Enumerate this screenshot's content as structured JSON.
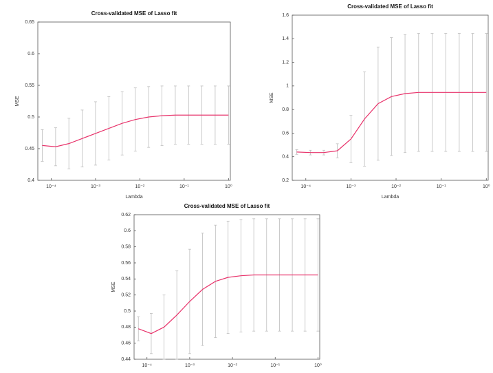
{
  "chart_data": [
    {
      "type": "line",
      "title": "Cross-validated MSE of Lasso fit",
      "xlabel": "Lambda",
      "ylabel": "MSE",
      "log_x": true,
      "x": [
        6.3e-05,
        0.000126,
        0.000251,
        0.0005,
        0.001,
        0.002,
        0.004,
        0.0079,
        0.0158,
        0.0316,
        0.063,
        0.126,
        0.251,
        0.5,
        1
      ],
      "xlim": [
        5e-05,
        1.1
      ],
      "xticks": [
        {
          "value": 0.0001,
          "label": "10⁻⁴"
        },
        {
          "value": 0.001,
          "label": "10⁻³"
        },
        {
          "value": 0.01,
          "label": "10⁻²"
        },
        {
          "value": 0.1,
          "label": "10⁻¹"
        },
        {
          "value": 1,
          "label": "10⁰"
        }
      ],
      "ylim": [
        0.4,
        0.65
      ],
      "yticks": [
        0.4,
        0.45,
        0.5,
        0.55,
        0.6,
        0.65
      ],
      "series": [
        {
          "color": "#e8336b",
          "error_color": "#bdbdbd",
          "values": [
            0.455,
            0.453,
            0.458,
            0.466,
            0.474,
            0.482,
            0.49,
            0.496,
            0.5,
            0.502,
            0.503,
            0.503,
            0.503,
            0.503,
            0.503
          ],
          "errors": [
            0.025,
            0.03,
            0.04,
            0.045,
            0.05,
            0.05,
            0.05,
            0.05,
            0.048,
            0.047,
            0.046,
            0.046,
            0.046,
            0.046,
            0.046
          ]
        }
      ]
    },
    {
      "type": "line",
      "title": "Cross-validated MSE of Lasso fit",
      "xlabel": "Lambda",
      "ylabel": "MSE",
      "log_x": true,
      "x": [
        6.3e-05,
        0.000126,
        0.000251,
        0.0005,
        0.001,
        0.002,
        0.004,
        0.0079,
        0.0158,
        0.0316,
        0.063,
        0.126,
        0.251,
        0.5,
        1
      ],
      "xlim": [
        5e-05,
        1.1
      ],
      "xticks": [
        {
          "value": 0.0001,
          "label": "10⁻⁴"
        },
        {
          "value": 0.001,
          "label": "10⁻³"
        },
        {
          "value": 0.01,
          "label": "10⁻²"
        },
        {
          "value": 0.1,
          "label": "10⁻¹"
        },
        {
          "value": 1,
          "label": "10⁰"
        }
      ],
      "ylim": [
        0.2,
        1.6
      ],
      "yticks": [
        0.2,
        0.4,
        0.6,
        0.8,
        1,
        1.2,
        1.4,
        1.6
      ],
      "series": [
        {
          "color": "#e8336b",
          "error_color": "#bdbdbd",
          "values": [
            0.44,
            0.435,
            0.435,
            0.45,
            0.55,
            0.72,
            0.85,
            0.91,
            0.935,
            0.945,
            0.945,
            0.945,
            0.945,
            0.945,
            0.945
          ],
          "errors": [
            0.02,
            0.02,
            0.02,
            0.06,
            0.2,
            0.4,
            0.48,
            0.5,
            0.5,
            0.5,
            0.5,
            0.5,
            0.5,
            0.5,
            0.5
          ]
        }
      ]
    },
    {
      "type": "line",
      "title": "Cross-validated MSE of Lasso fit",
      "ylabel": "MSE",
      "log_x": true,
      "x": [
        6.3e-05,
        0.000126,
        0.000251,
        0.0005,
        0.001,
        0.002,
        0.004,
        0.0079,
        0.0158,
        0.0316,
        0.063,
        0.126,
        0.251,
        0.5,
        1
      ],
      "xlim": [
        5e-05,
        1.1
      ],
      "xticks": [
        {
          "value": 0.0001,
          "label": "10⁻⁴"
        },
        {
          "value": 0.001,
          "label": "10⁻³"
        },
        {
          "value": 0.01,
          "label": "10⁻²"
        },
        {
          "value": 0.1,
          "label": "10⁻¹"
        },
        {
          "value": 1,
          "label": "10⁰"
        }
      ],
      "ylim": [
        0.44,
        0.62
      ],
      "yticks": [
        0.44,
        0.46,
        0.48,
        0.5,
        0.52,
        0.54,
        0.56,
        0.58,
        0.6,
        0.62
      ],
      "series": [
        {
          "color": "#e8336b",
          "error_color": "#bdbdbd",
          "values": [
            0.478,
            0.472,
            0.48,
            0.495,
            0.512,
            0.527,
            0.537,
            0.542,
            0.544,
            0.545,
            0.545,
            0.545,
            0.545,
            0.545,
            0.545
          ],
          "errors": [
            0.015,
            0.025,
            0.04,
            0.055,
            0.065,
            0.07,
            0.07,
            0.07,
            0.07,
            0.07,
            0.07,
            0.07,
            0.07,
            0.07,
            0.07
          ]
        }
      ]
    }
  ]
}
